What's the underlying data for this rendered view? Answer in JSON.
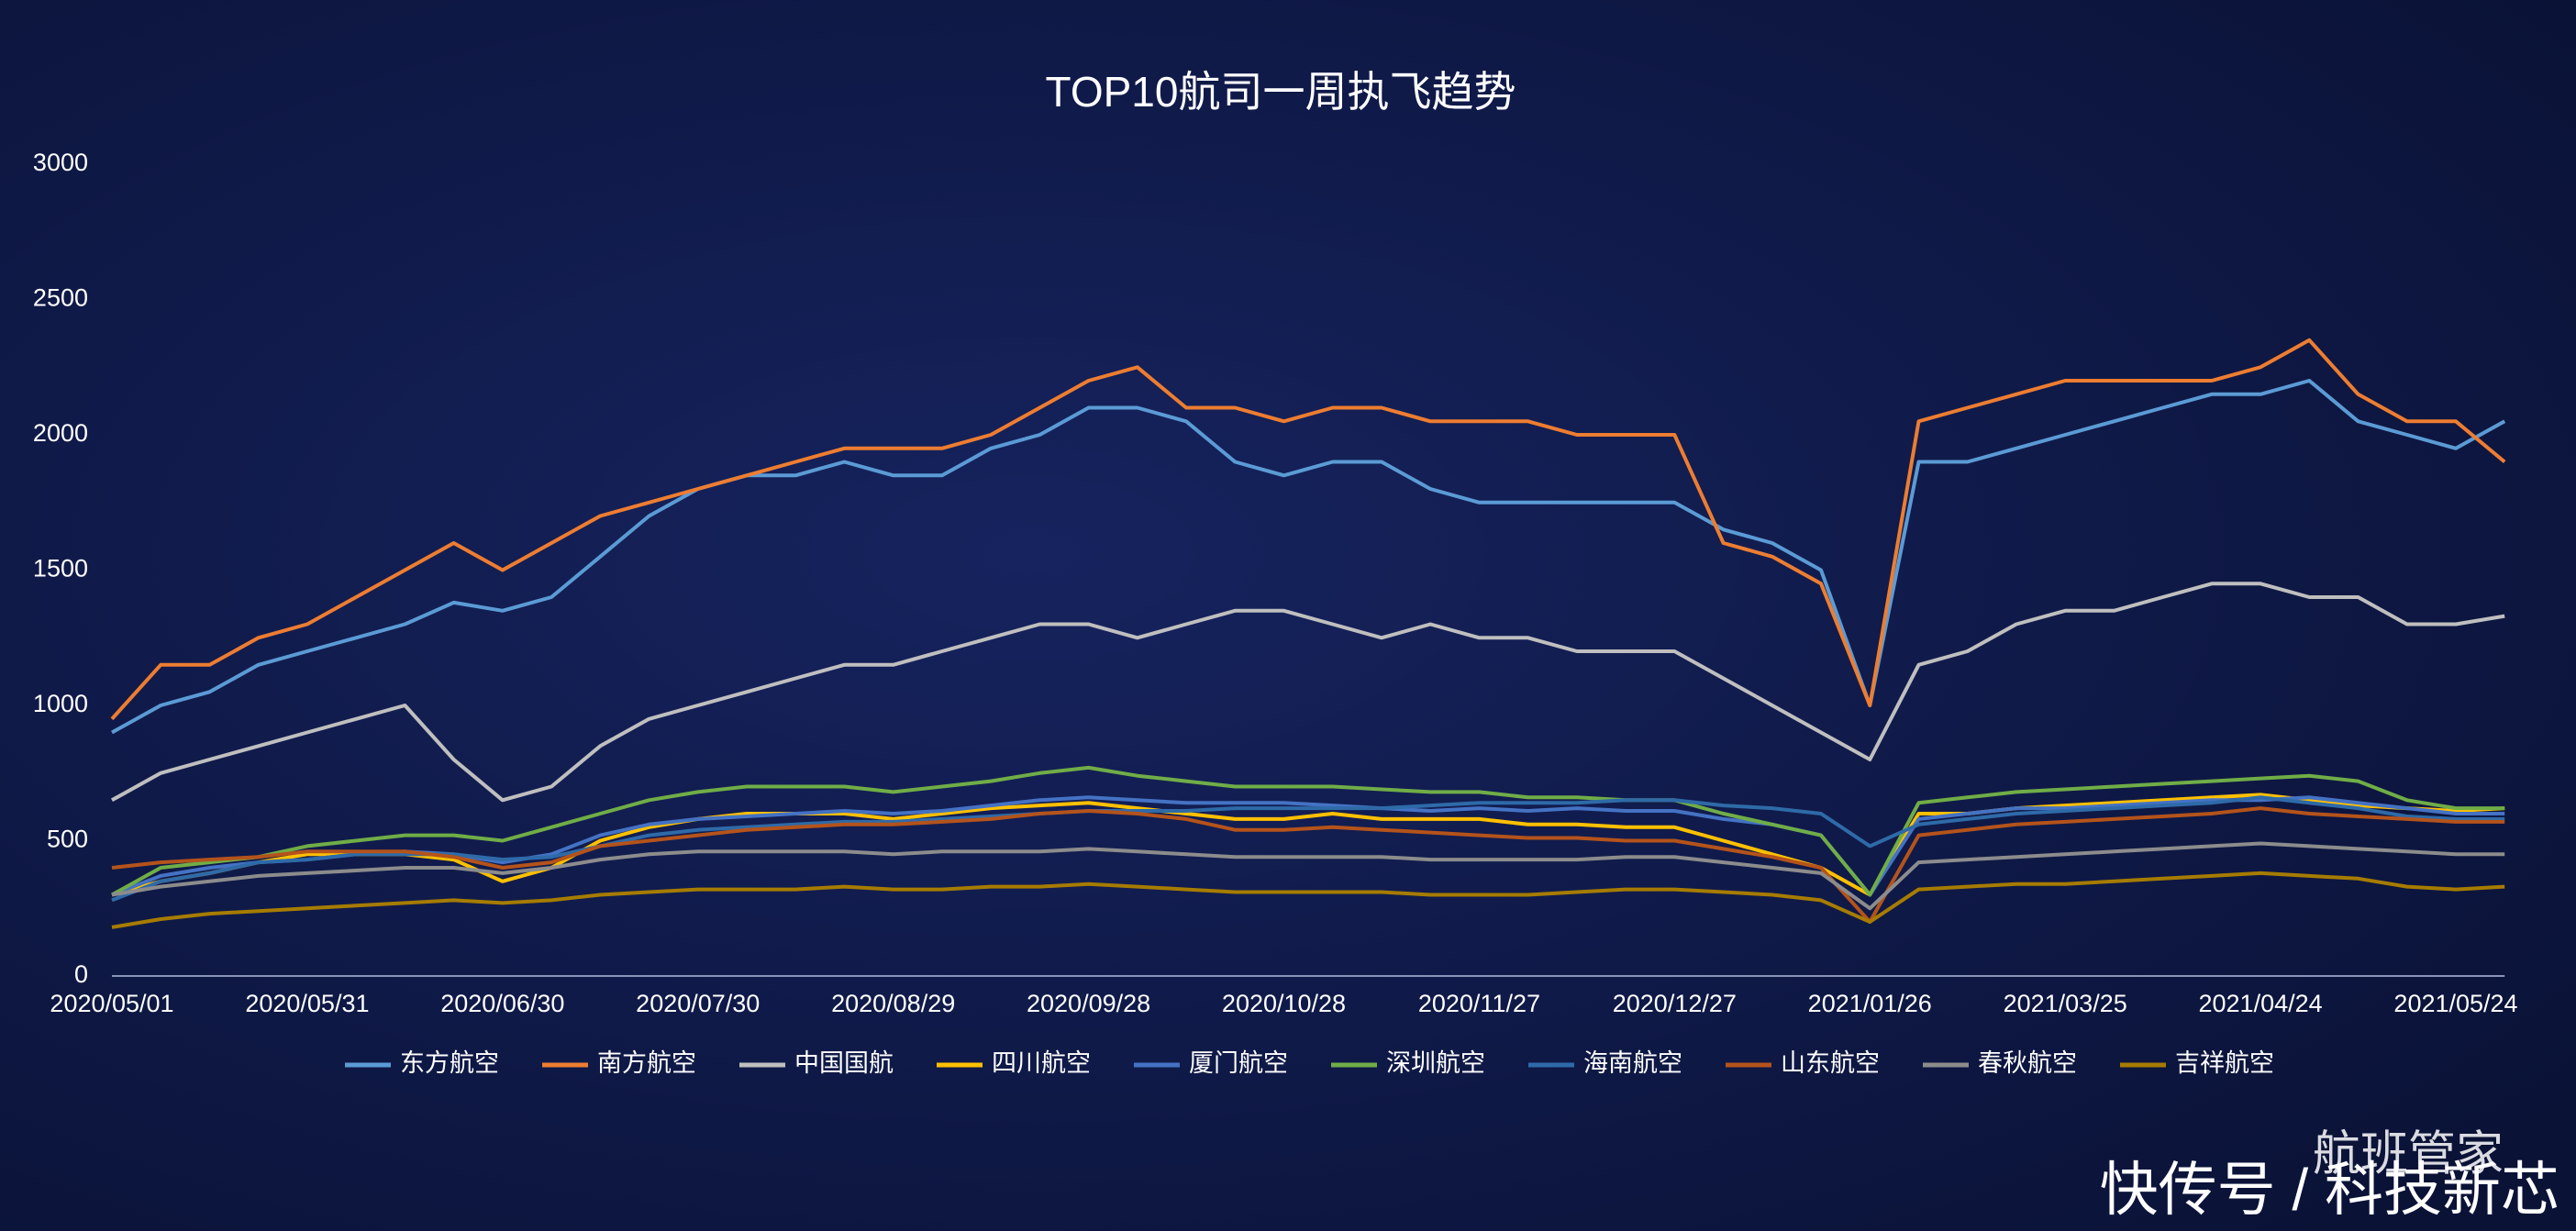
{
  "chart_data": {
    "type": "line",
    "title": "TOP10航司一周执飞趋势",
    "categories": [
      "2020/05/01",
      null,
      null,
      null,
      "2020/05/31",
      null,
      null,
      null,
      "2020/06/30",
      null,
      null,
      null,
      "2020/07/30",
      null,
      null,
      null,
      "2020/08/29",
      null,
      null,
      null,
      "2020/09/28",
      null,
      null,
      null,
      "2020/10/28",
      null,
      null,
      null,
      "2020/11/27",
      null,
      null,
      null,
      "2020/12/27",
      null,
      null,
      null,
      "2021/01/26",
      null,
      null,
      null,
      "2021/03/25",
      null,
      null,
      null,
      "2021/04/24",
      null,
      null,
      null,
      "2021/05/24",
      null
    ],
    "ylim": [
      0,
      3000
    ],
    "yticks": [
      0,
      500,
      1000,
      1500,
      2000,
      2500,
      3000
    ],
    "grid": false,
    "legend": "bottom",
    "series": [
      {
        "name": "东方航空",
        "color": "#5b9bd5",
        "values": [
          900,
          1000,
          1050,
          1150,
          1200,
          1250,
          1300,
          1380,
          1350,
          1400,
          1550,
          1700,
          1800,
          1850,
          1850,
          1900,
          1850,
          1850,
          1950,
          2000,
          2100,
          2100,
          2050,
          1900,
          1850,
          1900,
          1900,
          1800,
          1750,
          1750,
          1750,
          1750,
          1750,
          1650,
          1600,
          1500,
          1000,
          1900,
          1900,
          1950,
          2000,
          2050,
          2100,
          2150,
          2150,
          2200,
          2050,
          2000,
          1950,
          2050
        ]
      },
      {
        "name": "南方航空",
        "color": "#ed7d31",
        "values": [
          950,
          1150,
          1150,
          1250,
          1300,
          1400,
          1500,
          1600,
          1500,
          1600,
          1700,
          1750,
          1800,
          1850,
          1900,
          1950,
          1950,
          1950,
          2000,
          2100,
          2200,
          2250,
          2100,
          2100,
          2050,
          2100,
          2100,
          2050,
          2050,
          2050,
          2000,
          2000,
          2000,
          1600,
          1550,
          1450,
          1000,
          2050,
          2100,
          2150,
          2200,
          2200,
          2200,
          2200,
          2250,
          2350,
          2150,
          2050,
          2050,
          1900
        ]
      },
      {
        "name": "中国国航",
        "color": "#bfbfbf",
        "values": [
          650,
          750,
          800,
          850,
          900,
          950,
          1000,
          800,
          650,
          700,
          850,
          950,
          1000,
          1050,
          1100,
          1150,
          1150,
          1200,
          1250,
          1300,
          1300,
          1250,
          1300,
          1350,
          1350,
          1300,
          1250,
          1300,
          1250,
          1250,
          1200,
          1200,
          1200,
          1100,
          1000,
          900,
          800,
          1150,
          1200,
          1300,
          1350,
          1350,
          1400,
          1450,
          1450,
          1400,
          1400,
          1300,
          1300,
          1330
        ]
      },
      {
        "name": "四川航空",
        "color": "#ffc000",
        "values": [
          300,
          350,
          380,
          420,
          450,
          450,
          450,
          430,
          350,
          400,
          500,
          550,
          580,
          600,
          600,
          600,
          580,
          600,
          620,
          630,
          640,
          620,
          600,
          580,
          580,
          600,
          580,
          580,
          580,
          560,
          560,
          550,
          550,
          500,
          450,
          400,
          300,
          600,
          600,
          620,
          630,
          640,
          650,
          660,
          670,
          650,
          630,
          620,
          610,
          620
        ]
      },
      {
        "name": "厦门航空",
        "color": "#4472c4",
        "values": [
          300,
          370,
          400,
          420,
          430,
          450,
          460,
          450,
          420,
          450,
          520,
          560,
          580,
          590,
          600,
          610,
          600,
          610,
          630,
          650,
          660,
          650,
          640,
          640,
          640,
          630,
          620,
          610,
          620,
          610,
          620,
          610,
          610,
          580,
          560,
          520,
          300,
          580,
          600,
          620,
          620,
          630,
          640,
          650,
          650,
          660,
          640,
          620,
          600,
          600
        ]
      },
      {
        "name": "深圳航空",
        "color": "#70ad47",
        "values": [
          300,
          400,
          420,
          440,
          480,
          500,
          520,
          520,
          500,
          550,
          600,
          650,
          680,
          700,
          700,
          700,
          680,
          700,
          720,
          750,
          770,
          740,
          720,
          700,
          700,
          700,
          690,
          680,
          680,
          660,
          660,
          650,
          650,
          600,
          560,
          520,
          300,
          640,
          660,
          680,
          690,
          700,
          710,
          720,
          730,
          740,
          720,
          650,
          620,
          620
        ]
      },
      {
        "name": "海南航空",
        "color": "#2e6aa8",
        "values": [
          280,
          350,
          380,
          420,
          430,
          450,
          450,
          450,
          430,
          440,
          480,
          520,
          540,
          550,
          560,
          570,
          570,
          580,
          590,
          600,
          610,
          610,
          610,
          620,
          620,
          620,
          620,
          630,
          640,
          640,
          640,
          650,
          650,
          630,
          620,
          600,
          480,
          560,
          580,
          600,
          610,
          620,
          630,
          640,
          660,
          640,
          620,
          590,
          580,
          580
        ]
      },
      {
        "name": "山东航空",
        "color": "#b4531b",
        "values": [
          400,
          420,
          430,
          440,
          460,
          460,
          460,
          440,
          400,
          420,
          480,
          500,
          520,
          540,
          550,
          560,
          560,
          570,
          580,
          600,
          610,
          600,
          580,
          540,
          540,
          550,
          540,
          530,
          520,
          510,
          510,
          500,
          500,
          470,
          440,
          400,
          200,
          520,
          540,
          560,
          570,
          580,
          590,
          600,
          620,
          600,
          590,
          580,
          570,
          570
        ]
      },
      {
        "name": "春秋航空",
        "color": "#8c8c8c",
        "values": [
          300,
          330,
          350,
          370,
          380,
          390,
          400,
          400,
          380,
          400,
          430,
          450,
          460,
          460,
          460,
          460,
          450,
          460,
          460,
          460,
          470,
          460,
          450,
          440,
          440,
          440,
          440,
          430,
          430,
          430,
          430,
          440,
          440,
          420,
          400,
          380,
          250,
          420,
          430,
          440,
          450,
          460,
          470,
          480,
          490,
          480,
          470,
          460,
          450,
          450
        ]
      },
      {
        "name": "吉祥航空",
        "color": "#a67c00",
        "values": [
          180,
          210,
          230,
          240,
          250,
          260,
          270,
          280,
          270,
          280,
          300,
          310,
          320,
          320,
          320,
          330,
          320,
          320,
          330,
          330,
          340,
          330,
          320,
          310,
          310,
          310,
          310,
          300,
          300,
          300,
          310,
          320,
          320,
          310,
          300,
          280,
          200,
          320,
          330,
          340,
          340,
          350,
          360,
          370,
          380,
          370,
          360,
          330,
          320,
          330
        ]
      }
    ],
    "annotations": [
      "航班管家",
      "快传号 / 科技新芯"
    ]
  }
}
